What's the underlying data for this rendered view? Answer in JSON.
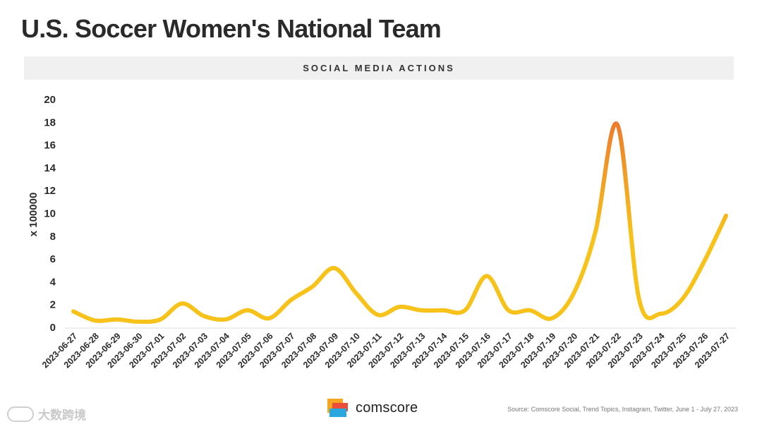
{
  "header": {
    "title": "U.S. Soccer Women's National Team",
    "subtitle": "SOCIAL MEDIA ACTIONS"
  },
  "chart_data": {
    "type": "line",
    "title": "U.S. Soccer Women's National Team",
    "subtitle": "SOCIAL MEDIA ACTIONS",
    "xlabel": "",
    "ylabel": "x 100000",
    "ylim": [
      0,
      20
    ],
    "yticks": [
      0,
      2,
      4,
      6,
      8,
      10,
      12,
      14,
      16,
      18,
      20
    ],
    "grid": false,
    "categories": [
      "2023-06-27",
      "2023-06-28",
      "2023-06-29",
      "2023-06-30",
      "2023-07-01",
      "2023-07-02",
      "2023-07-03",
      "2023-07-04",
      "2023-07-05",
      "2023-07-06",
      "2023-07-07",
      "2023-07-08",
      "2023-07-09",
      "2023-07-10",
      "2023-07-11",
      "2023-07-12",
      "2023-07-13",
      "2023-07-14",
      "2023-07-15",
      "2023-07-16",
      "2023-07-17",
      "2023-07-18",
      "2023-07-19",
      "2023-07-20",
      "2023-07-21",
      "2023-07-22",
      "2023-07-23",
      "2023-07-24",
      "2023-07-25",
      "2023-07-26",
      "2023-07-27"
    ],
    "series": [
      {
        "name": "Social Media Actions",
        "values": [
          1.4,
          0.6,
          0.7,
          0.5,
          0.7,
          2.1,
          1.0,
          0.7,
          1.5,
          0.8,
          2.4,
          3.6,
          5.2,
          3.0,
          1.1,
          1.8,
          1.5,
          1.5,
          1.5,
          4.5,
          1.5,
          1.5,
          0.8,
          3.0,
          8.4,
          17.8,
          2.5,
          1.2,
          2.5,
          5.8,
          9.8
        ]
      }
    ],
    "colors": {
      "line_low": "#f7c21a",
      "line_high": "#ed7d2b",
      "axis": "#dddddd"
    }
  },
  "logo": {
    "name": "comscore",
    "colors": [
      "#f5a623",
      "#e94e3c",
      "#29a8dd"
    ]
  },
  "footer": {
    "source": "Source: Comscore Social, Trend Topics, Instagram, Twitter, June 1 - July 27, 2023",
    "watermark": "大数跨境"
  }
}
